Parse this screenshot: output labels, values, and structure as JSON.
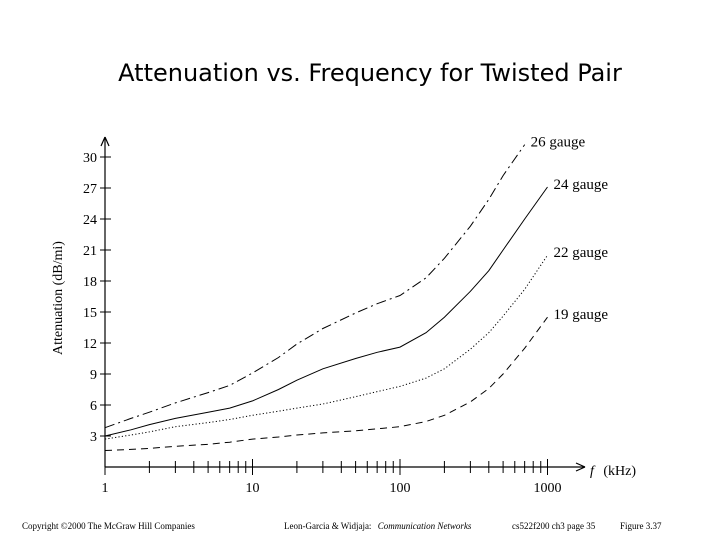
{
  "chart_data": {
    "type": "line",
    "title": "Attenuation vs. Frequency for Twisted Pair",
    "ylabel": "Attenuation (dB/mi)",
    "xlabel_var": "f",
    "xlabel_unit": "(kHz)",
    "x_scale": "log",
    "xlim": [
      1,
      1000
    ],
    "ylim": [
      0,
      30
    ],
    "x_ticks": [
      1,
      10,
      100,
      1000
    ],
    "x_tick_labels": [
      "1",
      "10",
      "100",
      "1000"
    ],
    "y_ticks": [
      3,
      6,
      9,
      12,
      15,
      18,
      21,
      24,
      27,
      30
    ],
    "y_tick_labels": [
      "3",
      "6",
      "9",
      "12",
      "15",
      "18",
      "21",
      "24",
      "27",
      "30"
    ],
    "grid": false,
    "series": [
      {
        "name": "26 gauge",
        "dash": "dashdot",
        "x": [
          1,
          1.5,
          2,
          3,
          5,
          7,
          10,
          15,
          20,
          30,
          50,
          70,
          100,
          150,
          200,
          300,
          400,
          500,
          700
        ],
        "y": [
          3.8,
          4.7,
          5.3,
          6.2,
          7.2,
          7.9,
          9.1,
          10.6,
          11.9,
          13.4,
          14.9,
          15.8,
          16.6,
          18.3,
          20.2,
          23.3,
          25.9,
          28.2,
          31.2
        ]
      },
      {
        "name": "24 gauge",
        "dash": "solid",
        "x": [
          1,
          1.5,
          2,
          3,
          5,
          7,
          10,
          15,
          20,
          30,
          50,
          70,
          100,
          150,
          200,
          300,
          400,
          500,
          700,
          1000
        ],
        "y": [
          3.0,
          3.6,
          4.1,
          4.7,
          5.3,
          5.7,
          6.4,
          7.5,
          8.4,
          9.5,
          10.5,
          11.1,
          11.6,
          13.0,
          14.5,
          17.0,
          19.0,
          21.0,
          24.0,
          27.1
        ]
      },
      {
        "name": "22 gauge",
        "dash": "dotted",
        "x": [
          1,
          1.5,
          2,
          3,
          5,
          7,
          10,
          15,
          20,
          30,
          50,
          70,
          100,
          150,
          200,
          300,
          400,
          500,
          700,
          1000
        ],
        "y": [
          2.7,
          3.1,
          3.4,
          3.9,
          4.3,
          4.6,
          5.0,
          5.4,
          5.7,
          6.1,
          6.8,
          7.3,
          7.8,
          8.6,
          9.5,
          11.4,
          13.0,
          14.6,
          17.2,
          20.5
        ]
      },
      {
        "name": "19 gauge",
        "dash": "dashed",
        "x": [
          1,
          1.5,
          2,
          3,
          5,
          7,
          10,
          15,
          20,
          30,
          50,
          70,
          100,
          150,
          200,
          300,
          400,
          500,
          700,
          1000
        ],
        "y": [
          1.6,
          1.7,
          1.8,
          2.0,
          2.2,
          2.4,
          2.7,
          2.9,
          3.1,
          3.3,
          3.5,
          3.7,
          3.9,
          4.4,
          5.0,
          6.3,
          7.6,
          9.0,
          11.5,
          14.5
        ]
      }
    ]
  },
  "footer": {
    "copyright": "Copyright ©2000 The McGraw Hill Companies",
    "authors": "Leon-Garcia & Widjaja:",
    "book": "Communication Networks",
    "course": "cs522f200 ch3 page 35",
    "figure": "Figure 3.37"
  }
}
